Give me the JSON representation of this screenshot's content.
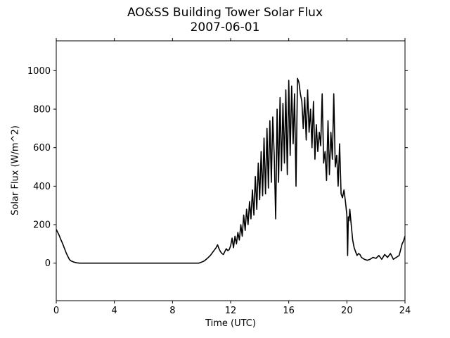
{
  "chart_data": {
    "type": "line",
    "title": "AO&SS Building Tower Solar Flux",
    "subtitle": "2007-06-01",
    "xlabel": "Time (UTC)",
    "ylabel": "Solar Flux (W/m^2)",
    "xlim": [
      0,
      24
    ],
    "ylim": [
      -195,
      1155
    ],
    "xticks": [
      0,
      4,
      8,
      12,
      16,
      20,
      24
    ],
    "yticks": [
      0,
      200,
      400,
      600,
      800,
      1000
    ],
    "grid": false,
    "line_color": "#000000",
    "series": [
      {
        "x": [
          0.0,
          0.1,
          0.2,
          0.3,
          0.4,
          0.5,
          0.6,
          0.7,
          0.8,
          0.9,
          1.0,
          1.2,
          1.4,
          1.6,
          1.8,
          2.0,
          2.5,
          3.0,
          4.0,
          5.0,
          6.0,
          7.0,
          8.0,
          9.0,
          9.5,
          9.8,
          10.0,
          10.2,
          10.4,
          10.6,
          10.8,
          11.0,
          11.1,
          11.2,
          11.3,
          11.4,
          11.5,
          11.6,
          11.7,
          11.8,
          11.9,
          12.0,
          12.1,
          12.2,
          12.3,
          12.4,
          12.5,
          12.6,
          12.7,
          12.8,
          12.9,
          13.0,
          13.1,
          13.2,
          13.3,
          13.4,
          13.5,
          13.6,
          13.7,
          13.8,
          13.9,
          14.0,
          14.1,
          14.2,
          14.3,
          14.4,
          14.5,
          14.6,
          14.7,
          14.8,
          14.9,
          15.0,
          15.1,
          15.2,
          15.3,
          15.4,
          15.5,
          15.6,
          15.7,
          15.8,
          15.9,
          16.0,
          16.1,
          16.2,
          16.3,
          16.4,
          16.5,
          16.6,
          16.7,
          16.8,
          16.9,
          17.0,
          17.1,
          17.2,
          17.3,
          17.4,
          17.5,
          17.6,
          17.7,
          17.8,
          17.9,
          18.0,
          18.1,
          18.2,
          18.3,
          18.4,
          18.5,
          18.6,
          18.7,
          18.8,
          18.9,
          19.0,
          19.1,
          19.2,
          19.3,
          19.4,
          19.5,
          19.6,
          19.7,
          19.8,
          19.9,
          20.0,
          20.05,
          20.1,
          20.15,
          20.2,
          20.3,
          20.4,
          20.5,
          20.6,
          20.7,
          20.8,
          20.9,
          21.0,
          21.2,
          21.4,
          21.6,
          21.8,
          22.0,
          22.2,
          22.4,
          22.6,
          22.8,
          23.0,
          23.2,
          23.4,
          23.6,
          23.8,
          23.9,
          24.0
        ],
        "values": [
          175,
          160,
          145,
          125,
          108,
          90,
          70,
          50,
          35,
          20,
          12,
          6,
          2,
          0,
          0,
          0,
          0,
          0,
          0,
          0,
          0,
          0,
          0,
          0,
          0,
          0,
          5,
          12,
          25,
          40,
          60,
          80,
          95,
          75,
          60,
          50,
          45,
          60,
          75,
          65,
          70,
          90,
          130,
          80,
          140,
          100,
          160,
          120,
          200,
          140,
          250,
          170,
          280,
          200,
          320,
          230,
          380,
          250,
          450,
          280,
          520,
          330,
          580,
          350,
          650,
          360,
          700,
          390,
          740,
          420,
          760,
          560,
          230,
          800,
          420,
          860,
          480,
          830,
          520,
          900,
          460,
          950,
          560,
          920,
          620,
          880,
          400,
          960,
          940,
          880,
          840,
          700,
          860,
          640,
          900,
          680,
          800,
          600,
          840,
          540,
          720,
          580,
          680,
          610,
          880,
          520,
          580,
          430,
          740,
          460,
          680,
          540,
          880,
          500,
          560,
          400,
          620,
          360,
          340,
          380,
          320,
          250,
          40,
          240,
          220,
          280,
          200,
          120,
          80,
          60,
          40,
          50,
          45,
          30,
          20,
          15,
          20,
          30,
          25,
          40,
          20,
          45,
          30,
          50,
          20,
          30,
          40,
          100,
          115,
          140
        ]
      }
    ]
  }
}
